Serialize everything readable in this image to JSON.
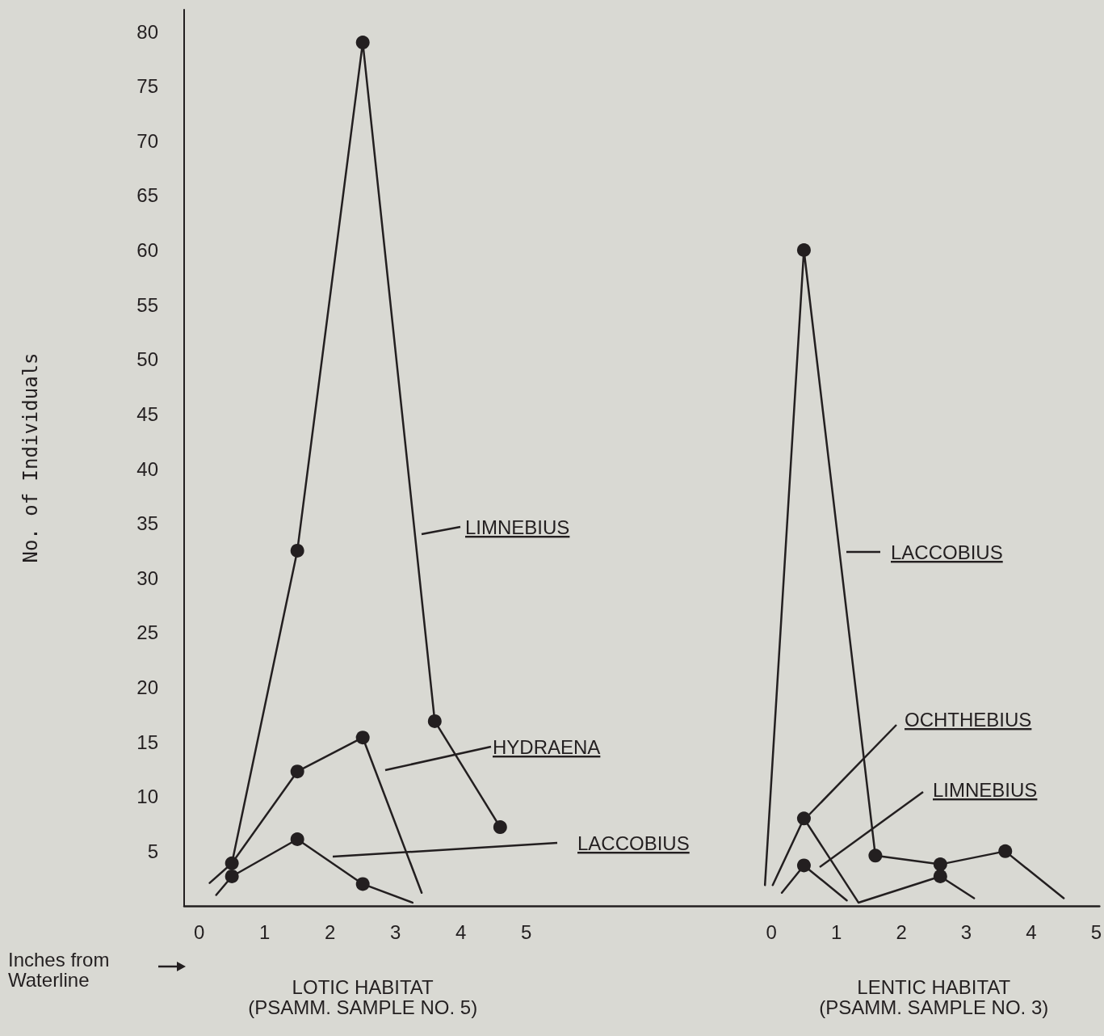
{
  "chart_data": [
    {
      "type": "line",
      "xlabel": "LOTIC HABITAT\n(PSAMM. SAMPLE NO. 5)",
      "ylabel": "No. of Individuals",
      "annotations": [
        "Inches from\nWaterline"
      ],
      "xlim": [
        -0.23,
        6.83
      ],
      "xticks": [
        0,
        1,
        2,
        3,
        4,
        5
      ],
      "ylim": [
        0,
        82
      ],
      "yticks": [
        5,
        10,
        15,
        20,
        25,
        30,
        35,
        40,
        45,
        50,
        55,
        60,
        65,
        70,
        75,
        80
      ],
      "series": [
        {
          "name": "LIMNEBIUS",
          "color": "#231f20",
          "marker": "none",
          "x": [
            0.16,
            0.5,
            1.5,
            2.5,
            3.6,
            4.6
          ],
          "values": [
            2.1,
            3.9,
            32.5,
            79,
            16.9,
            7.2
          ]
        },
        {
          "name": "HYDRAENA",
          "color": "#231f20",
          "marker": "none",
          "x": [
            0.5,
            1.5,
            2.5,
            3.4
          ],
          "values": [
            3.9,
            12.3,
            15.4,
            1.2
          ]
        },
        {
          "name": "LACCOBIUS",
          "color": "#231f20",
          "marker": "none",
          "x": [
            0.26,
            0.5,
            1.5,
            2.5,
            3.26
          ],
          "values": [
            1.0,
            2.7,
            6.1,
            2.0,
            0.3
          ]
        },
        {
          "type": "scatter",
          "color": "#231f20",
          "marker": "circle",
          "x": [
            0.5,
            1.5,
            2.5,
            3.6,
            4.6,
            1.5,
            2.5,
            0.5,
            1.5,
            2.5
          ],
          "values": [
            3.9,
            32.5,
            79,
            16.9,
            7.2,
            12.3,
            15.4,
            2.7,
            6.1,
            2.0
          ]
        }
      ]
    },
    {
      "type": "line",
      "xlabel": "LENTIC HABITAT\n(PSAMM. SAMPLE NO. 3)",
      "tick_labels": "x",
      "xlim": [
        -1.93,
        5.05
      ],
      "xticks": [
        0,
        1,
        2,
        3,
        4,
        5
      ],
      "ylim": [
        0,
        80
      ],
      "yticks": [
        5,
        10,
        15,
        20,
        25,
        30,
        35,
        40,
        45,
        50,
        55,
        60,
        65,
        70,
        75,
        80
      ],
      "series": [
        {
          "name": "LACCOBIUS",
          "color": "#231f20",
          "marker": "none",
          "x": [
            -0.1,
            0.5,
            1.6,
            2.6,
            3.6,
            4.5
          ],
          "values": [
            1.9,
            60,
            4.6,
            3.8,
            5.0,
            0.7
          ]
        },
        {
          "name": "OCHTHEBIUS",
          "color": "#231f20",
          "marker": "none",
          "x": [
            0.02,
            0.5,
            1.34,
            2.6,
            3.12
          ],
          "values": [
            1.9,
            8.0,
            0.3,
            2.7,
            0.7
          ]
        },
        {
          "name": "LIMNEBIUS",
          "color": "#231f20",
          "marker": "none",
          "x": [
            0.16,
            0.5,
            1.16
          ],
          "values": [
            1.2,
            3.7,
            0.5
          ]
        },
        {
          "type": "scatter",
          "color": "#231f20",
          "marker": "circle",
          "x": [
            0.5,
            1.6,
            2.6,
            3.6,
            0.5,
            2.6,
            0.5
          ],
          "values": [
            60,
            4.6,
            3.8,
            5.0,
            8.0,
            2.7,
            3.7
          ]
        }
      ]
    }
  ]
}
